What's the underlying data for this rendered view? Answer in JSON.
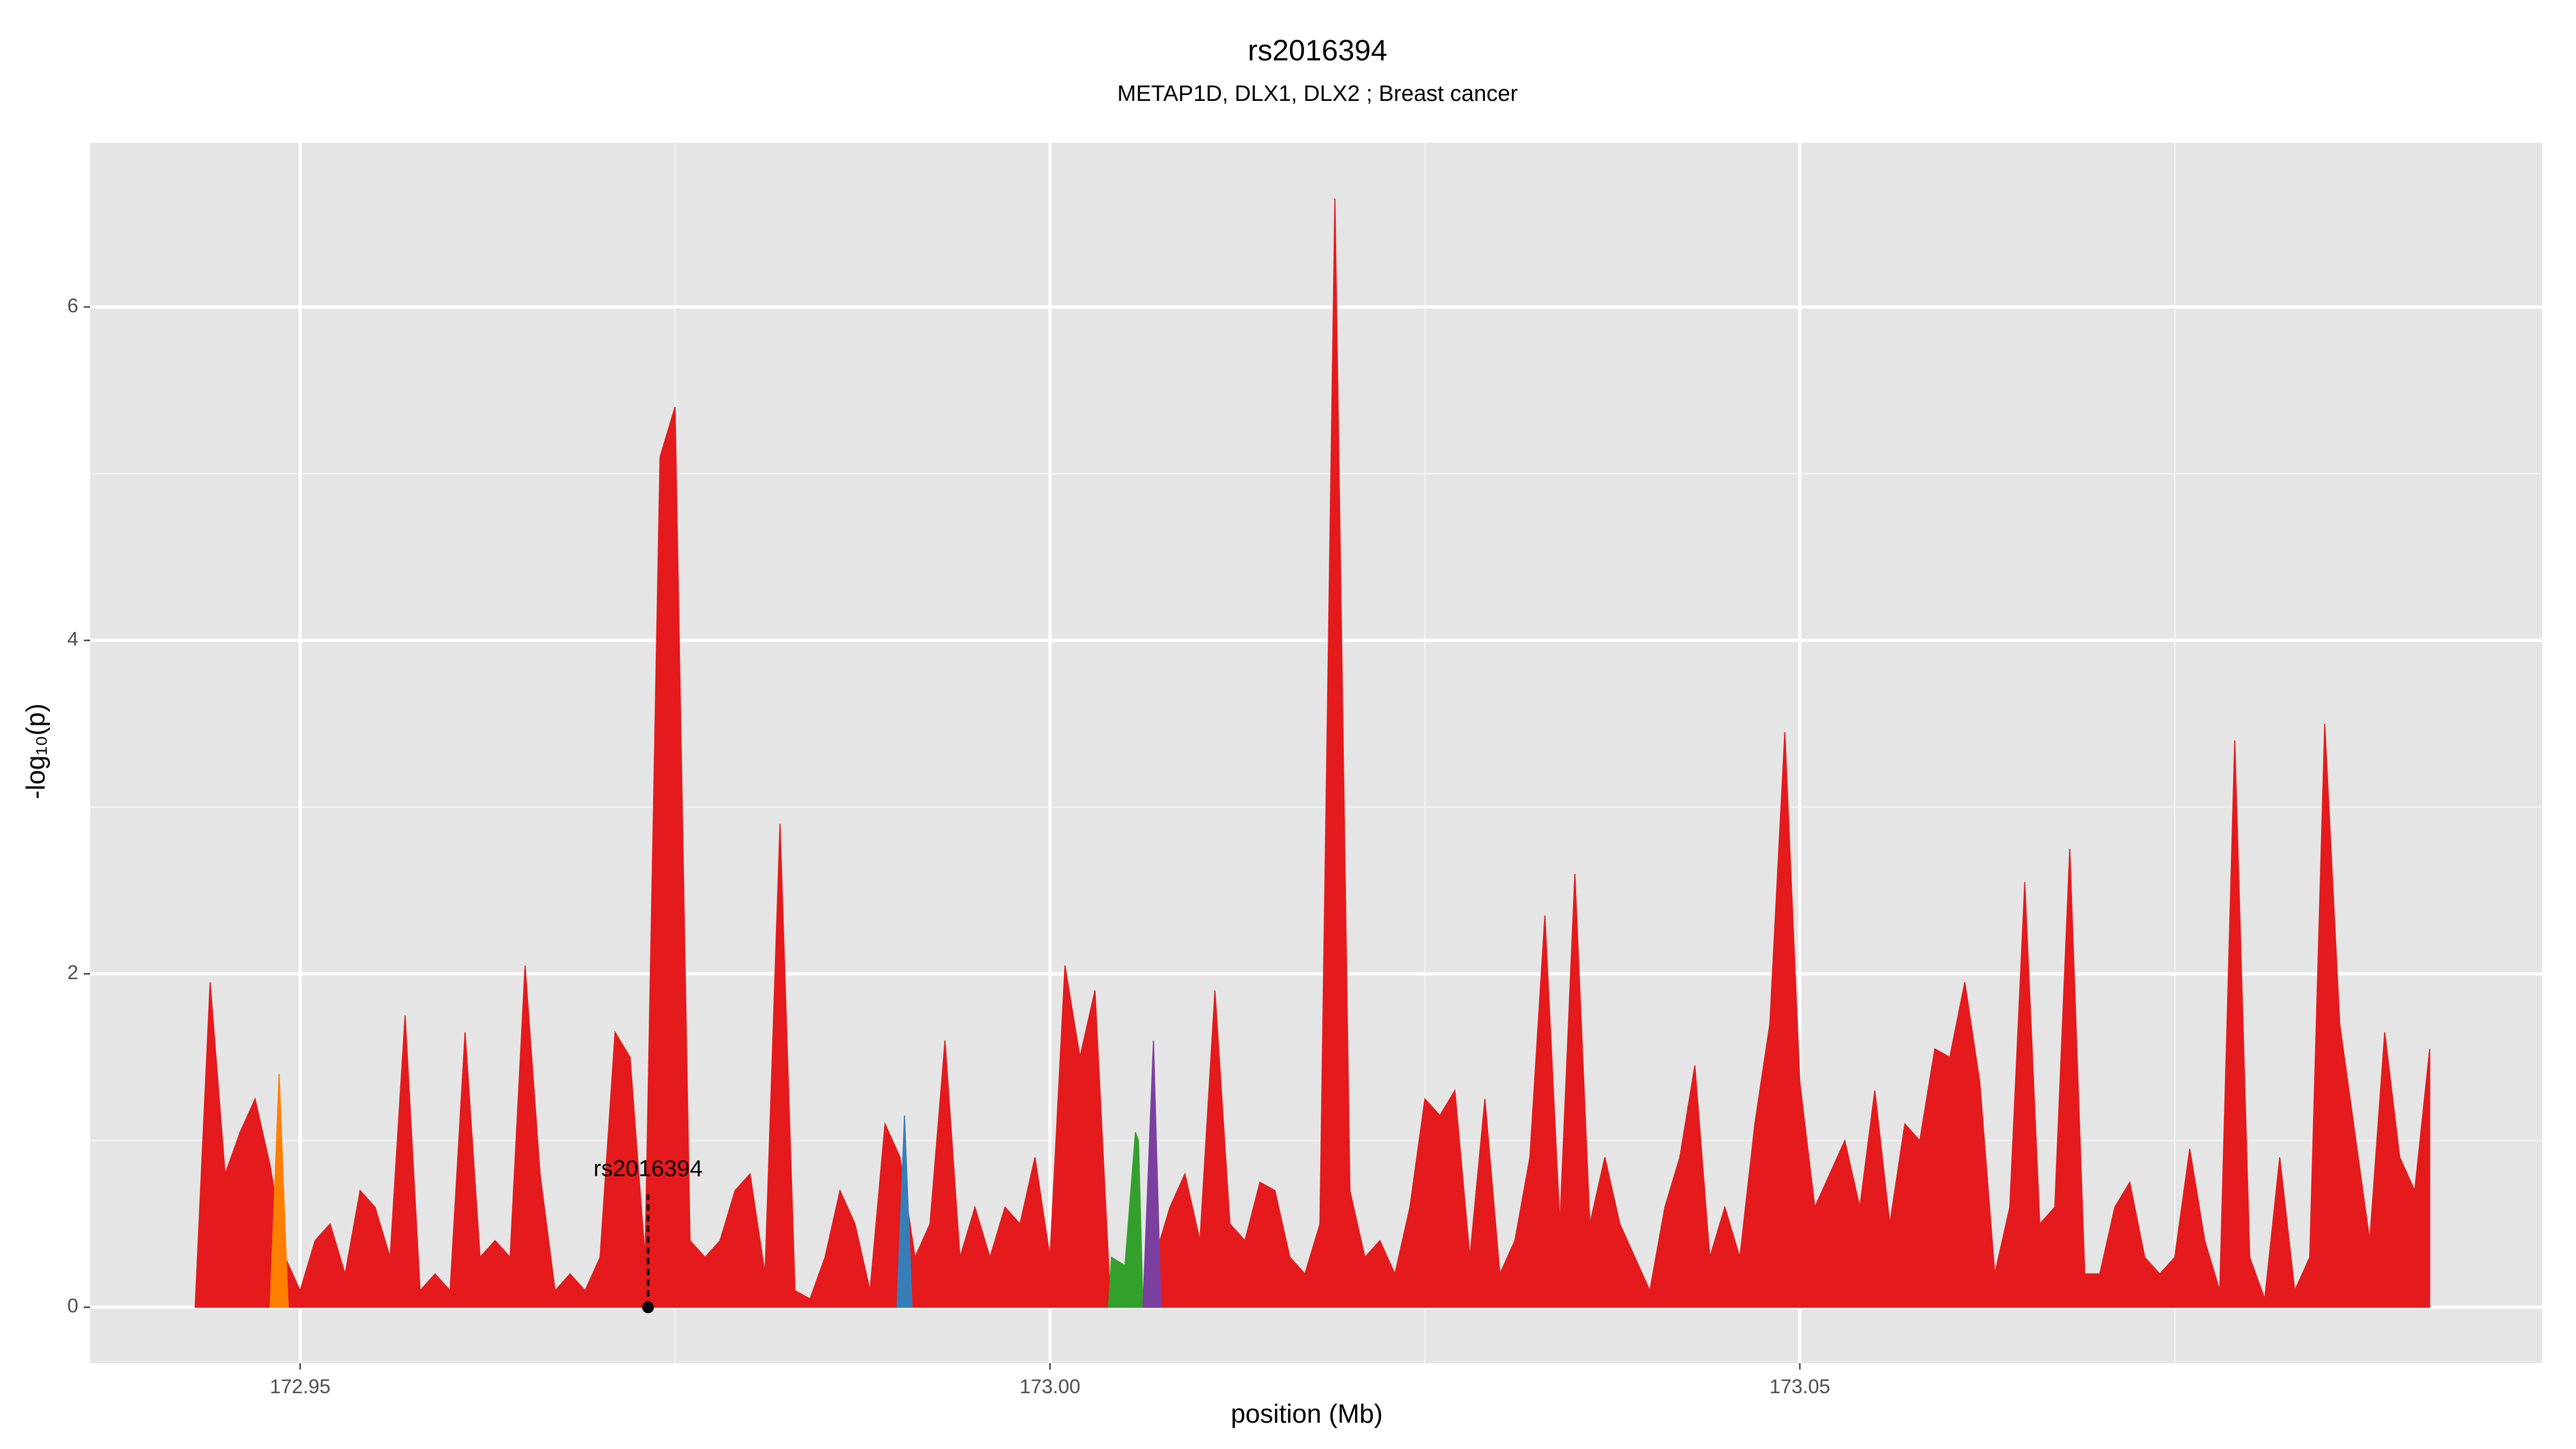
{
  "chart_data": {
    "type": "area",
    "title": "rs2016394",
    "subtitle": "METAP1D, DLX1, DLX2 ; Breast cancer",
    "x_label": "position (Mb)",
    "y_label": "-log₁₀(p)",
    "xlim": [
      172.936,
      173.0995
    ],
    "ylim": [
      -0.335,
      6.985
    ],
    "xticks": [
      172.95,
      {
        "value": 173,
        "label": "173.00"
      },
      173.05
    ],
    "yticks": [
      0,
      2,
      4,
      6
    ],
    "xminorticks": [
      172.975,
      173.025,
      173.075
    ],
    "yminorticks": [
      1,
      3,
      5
    ],
    "grid": true,
    "annotations": [
      {
        "text": "rs2016394",
        "x": 172.9732,
        "y": 0
      }
    ],
    "series": [
      {
        "color": "#e41a1c",
        "x": [
          172.943,
          172.944,
          172.945,
          172.946,
          172.947,
          172.948,
          172.949,
          172.95,
          172.951,
          172.952,
          172.953,
          172.954,
          172.955,
          172.956,
          172.957,
          172.958,
          172.959,
          172.96,
          172.961,
          172.962,
          172.963,
          172.964,
          172.965,
          172.966,
          172.967,
          172.968,
          172.969,
          172.97,
          172.971,
          172.972,
          172.973,
          172.974,
          172.975,
          172.976,
          172.977,
          172.978,
          172.979,
          172.98,
          172.981,
          172.982,
          172.983,
          172.984,
          172.985,
          172.986,
          172.987,
          172.988,
          172.989,
          172.99,
          172.991,
          172.992,
          172.993,
          172.994,
          172.995,
          172.996,
          172.997,
          172.998,
          172.999,
          173.0,
          173.001,
          173.002,
          173.003,
          173.004,
          173.005,
          173.006,
          173.007,
          173.008,
          173.009,
          173.01,
          173.011,
          173.012,
          173.013,
          173.014,
          173.015,
          173.016,
          173.017,
          173.018,
          173.019,
          173.02,
          173.021,
          173.022,
          173.023,
          173.024,
          173.025,
          173.026,
          173.027,
          173.028,
          173.029,
          173.03,
          173.031,
          173.032,
          173.033,
          173.034,
          173.035,
          173.036,
          173.037,
          173.038,
          173.039,
          173.04,
          173.041,
          173.042,
          173.043,
          173.044,
          173.045,
          173.046,
          173.047,
          173.048,
          173.049,
          173.05,
          173.051,
          173.052,
          173.053,
          173.054,
          173.055,
          173.056,
          173.057,
          173.058,
          173.059,
          173.06,
          173.061,
          173.062,
          173.063,
          173.064,
          173.065,
          173.066,
          173.067,
          173.068,
          173.069,
          173.07,
          173.071,
          173.072,
          173.073,
          173.074,
          173.075,
          173.076,
          173.077,
          173.078,
          173.079,
          173.08,
          173.081,
          173.082,
          173.083,
          173.084,
          173.085,
          173.086,
          173.087,
          173.088,
          173.089,
          173.09,
          173.091,
          173.092
        ],
        "values": [
          0,
          1.95,
          0.8,
          1.05,
          1.25,
          0.85,
          0.3,
          0.1,
          0.4,
          0.5,
          0.2,
          0.7,
          0.6,
          0.3,
          1.75,
          0.1,
          0.2,
          0.1,
          1.65,
          0.3,
          0.4,
          0.3,
          2.05,
          0.8,
          0.1,
          0.2,
          0.1,
          0.3,
          1.65,
          1.5,
          0.3,
          5.1,
          5.4,
          0.4,
          0.3,
          0.4,
          0.7,
          0.8,
          0.2,
          2.9,
          0.1,
          0.05,
          0.3,
          0.7,
          0.5,
          0.1,
          1.1,
          0.9,
          0.3,
          0.5,
          1.6,
          0.3,
          0.6,
          0.3,
          0.6,
          0.5,
          0.9,
          0.3,
          2.05,
          1.5,
          1.9,
          0.1,
          0.05,
          0.05,
          0.3,
          0.6,
          0.8,
          0.4,
          1.9,
          0.5,
          0.4,
          0.75,
          0.7,
          0.3,
          0.2,
          0.5,
          6.65,
          0.7,
          0.3,
          0.4,
          0.2,
          0.6,
          1.25,
          1.15,
          1.3,
          0.3,
          1.25,
          0.2,
          0.4,
          0.9,
          2.35,
          0.5,
          2.6,
          0.5,
          0.9,
          0.5,
          0.3,
          0.1,
          0.6,
          0.9,
          1.45,
          0.3,
          0.6,
          0.3,
          1.1,
          1.7,
          3.45,
          1.35,
          0.6,
          0.8,
          1.0,
          0.6,
          1.3,
          0.5,
          1.1,
          1.0,
          1.55,
          1.5,
          1.95,
          1.35,
          0.2,
          0.6,
          2.55,
          0.5,
          0.6,
          2.75,
          0.2,
          0.2,
          0.6,
          0.75,
          0.3,
          0.2,
          0.3,
          0.95,
          0.4,
          0.1,
          3.4,
          0.3,
          0.05,
          0.9,
          0.1,
          0.3,
          3.5,
          1.7,
          1.05,
          0.4,
          1.65,
          0.9,
          0.7,
          1.55
        ]
      },
      {
        "color": "#ff7f00",
        "x": [
          172.948,
          172.9486,
          172.9492
        ],
        "values": [
          0,
          1.4,
          0
        ]
      },
      {
        "color": "#377eb8",
        "x": [
          172.9898,
          172.9903,
          172.9908
        ],
        "values": [
          0,
          1.15,
          0
        ]
      },
      {
        "color": "#33a02c",
        "x": [
          173.0039,
          173.0041,
          173.005,
          173.0057,
          173.0059,
          173.0062
        ],
        "values": [
          0,
          0.3,
          0.25,
          1.05,
          1.0,
          0
        ]
      },
      {
        "color": "#7b3fa0",
        "x": [
          173.0062,
          173.0069,
          173.0074
        ],
        "values": [
          0,
          1.6,
          0
        ]
      }
    ]
  }
}
